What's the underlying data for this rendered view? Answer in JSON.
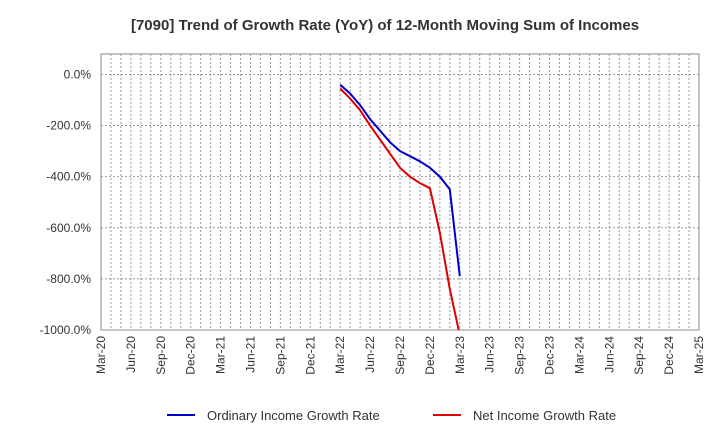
{
  "chart_data": {
    "type": "line",
    "title": "[7090]  Trend of Growth Rate (YoY) of 12-Month Moving Sum of Incomes",
    "xlabel": "",
    "ylabel": "",
    "x_ticks": [
      "Mar-20",
      "Jun-20",
      "Sep-20",
      "Dec-20",
      "Mar-21",
      "Jun-21",
      "Sep-21",
      "Dec-21",
      "Mar-22",
      "Jun-22",
      "Sep-22",
      "Dec-22",
      "Mar-23",
      "Jun-23",
      "Sep-23",
      "Dec-23",
      "Mar-24",
      "Jun-24",
      "Sep-24",
      "Dec-24",
      "Mar-25"
    ],
    "y_ticks": [
      "0.0%",
      "-200.0%",
      "-400.0%",
      "-600.0%",
      "-800.0%",
      "-1000.0%"
    ],
    "ylim": [
      -1000,
      80
    ],
    "xlim": [
      "2020-03",
      "2025-03"
    ],
    "grid": true,
    "legend_position": "bottom",
    "series": [
      {
        "name": "Ordinary Income Growth Rate",
        "color": "#0000cc",
        "x": [
          "2022-03",
          "2022-04",
          "2022-05",
          "2022-06",
          "2022-07",
          "2022-08",
          "2022-09",
          "2022-10",
          "2022-11",
          "2022-12",
          "2023-01",
          "2023-02",
          "2023-03",
          "2023-04"
        ],
        "y": [
          -40,
          -75,
          -120,
          -175,
          -220,
          -265,
          -300,
          -320,
          -340,
          -365,
          -400,
          -450,
          -790,
          null
        ]
      },
      {
        "name": "Net Income Growth Rate",
        "color": "#dd0000",
        "x": [
          "2022-03",
          "2022-04",
          "2022-05",
          "2022-06",
          "2022-07",
          "2022-08",
          "2022-09",
          "2022-10",
          "2022-11",
          "2022-12",
          "2023-01",
          "2023-02",
          "2023-03"
        ],
        "y": [
          -55,
          -95,
          -140,
          -200,
          -255,
          -310,
          -365,
          -400,
          -425,
          -445,
          -620,
          -840,
          -1020
        ]
      }
    ]
  }
}
